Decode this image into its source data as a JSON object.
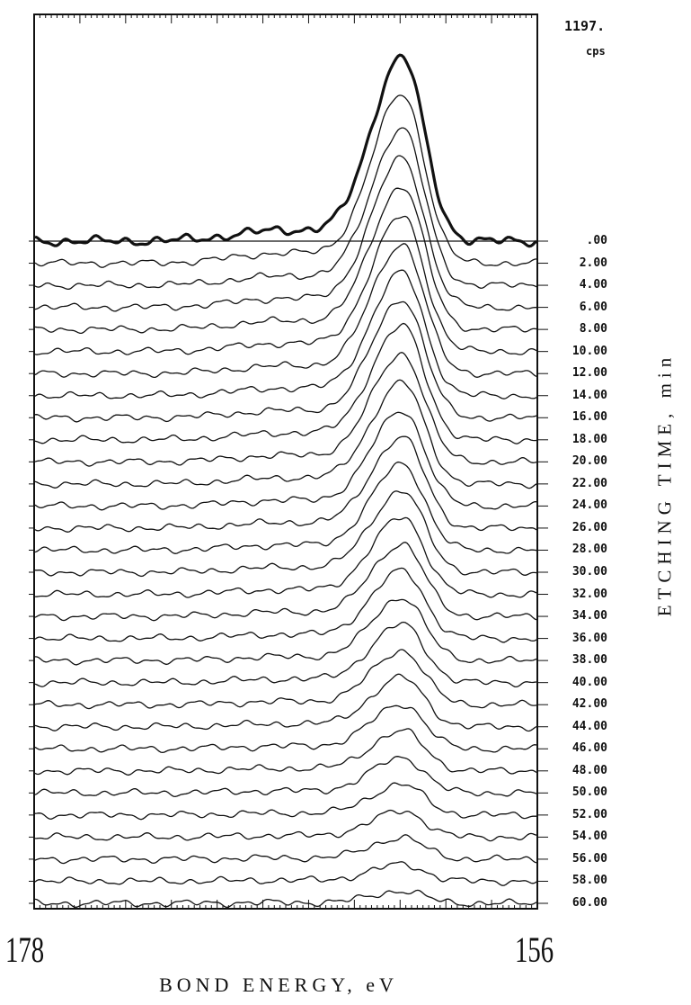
{
  "chart_data": {
    "type": "line",
    "xlabel": "BOND ENERGY, eV",
    "ylabel": "ETCHING TIME, min",
    "xlim": [
      178,
      156
    ],
    "x_axis_reversed": true,
    "y_max_label": "1197.",
    "y_unit": "cps",
    "x_tick_labels": [
      "178",
      "156"
    ],
    "etching_times": [
      ".00",
      "2.00",
      "4.00",
      "6.00",
      "8.00",
      "10.00",
      "12.00",
      "14.00",
      "16.00",
      "18.00",
      "20.00",
      "22.00",
      "24.00",
      "26.00",
      "28.00",
      "30.00",
      "32.00",
      "34.00",
      "36.00",
      "38.00",
      "40.00",
      "42.00",
      "44.00",
      "46.00",
      "48.00",
      "50.00",
      "52.00",
      "54.00",
      "56.00",
      "58.00",
      "60.00"
    ],
    "peak_position_eV": 161.9,
    "peak_counts": [
      1197,
      1100,
      1020,
      970,
      930,
      880,
      840,
      800,
      770,
      740,
      700,
      660,
      620,
      590,
      560,
      530,
      500,
      470,
      440,
      410,
      380,
      350,
      320,
      290,
      260,
      230,
      200,
      170,
      140,
      110,
      80
    ],
    "highlighted_series": "0.00",
    "grid": false
  }
}
